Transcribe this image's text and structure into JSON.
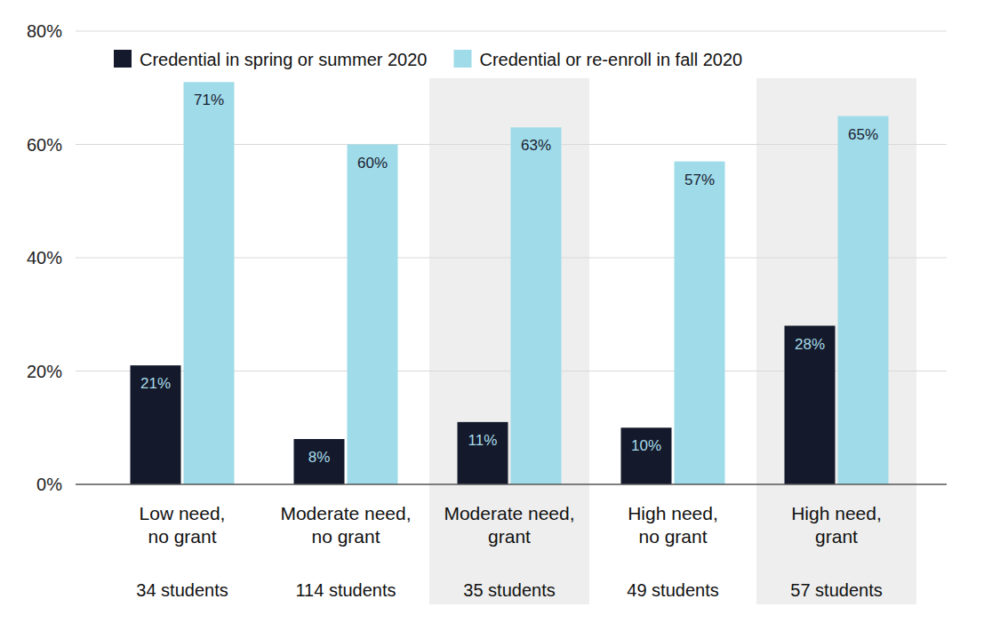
{
  "chart_data": {
    "type": "bar",
    "categories": [
      "Low need, no grant",
      "Moderate need, no grant",
      "Moderate need, grant",
      "High need, no grant",
      "High need, grant"
    ],
    "annotations": [
      "34 students",
      "114 students",
      "35 students",
      "49 students",
      "57 students"
    ],
    "series": [
      {
        "name": "Credential in spring or summer 2020",
        "color": "#141a2c",
        "values": [
          21,
          8,
          11,
          10,
          28
        ],
        "value_labels": [
          "21%",
          "8%",
          "11%",
          "10%",
          "28%"
        ]
      },
      {
        "name": "Credential or re-enroll in fall 2020",
        "color": "#9fdbe8",
        "values": [
          71,
          60,
          63,
          57,
          65
        ],
        "value_labels": [
          "71%",
          "60%",
          "63%",
          "57%",
          "65%"
        ]
      }
    ],
    "ylim": [
      0,
      80
    ],
    "yticks": [
      {
        "value": 0,
        "label": "0%"
      },
      {
        "value": 20,
        "label": "20%"
      },
      {
        "value": 40,
        "label": "40%"
      },
      {
        "value": 60,
        "label": "60%"
      },
      {
        "value": 80,
        "label": "80%"
      }
    ],
    "grid": true,
    "legend": "top",
    "data_labels": true
  }
}
